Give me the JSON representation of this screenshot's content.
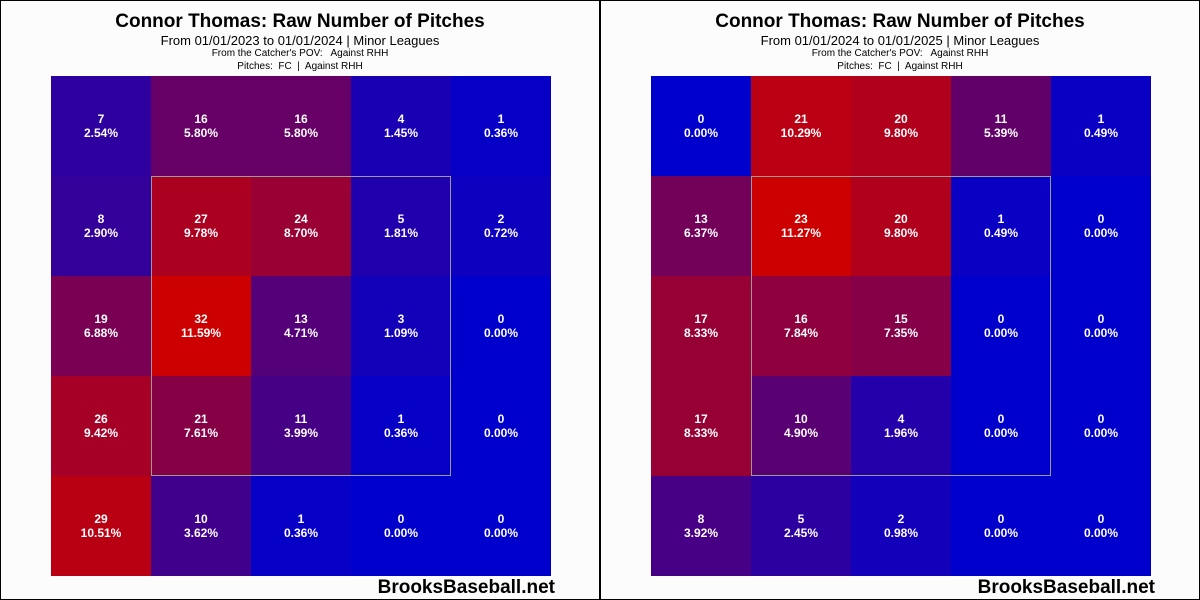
{
  "chart_data": [
    {
      "type": "heatmap",
      "title": "Connor Thomas: Raw Number of Pitches",
      "subtitle": "From 01/01/2023 to 01/01/2024 | Minor Leagues",
      "line3": "From the Catcher's POV:   Against RHH",
      "line4": "Pitches:  FC  |  Against RHH",
      "watermark": "BrooksBaseball.net",
      "grid": [
        [
          {
            "count": "7",
            "pct": "2.54%"
          },
          {
            "count": "16",
            "pct": "5.80%"
          },
          {
            "count": "16",
            "pct": "5.80%"
          },
          {
            "count": "4",
            "pct": "1.45%"
          },
          {
            "count": "1",
            "pct": "0.36%"
          }
        ],
        [
          {
            "count": "8",
            "pct": "2.90%"
          },
          {
            "count": "27",
            "pct": "9.78%"
          },
          {
            "count": "24",
            "pct": "8.70%"
          },
          {
            "count": "5",
            "pct": "1.81%"
          },
          {
            "count": "2",
            "pct": "0.72%"
          }
        ],
        [
          {
            "count": "19",
            "pct": "6.88%"
          },
          {
            "count": "32",
            "pct": "11.59%"
          },
          {
            "count": "13",
            "pct": "4.71%"
          },
          {
            "count": "3",
            "pct": "1.09%"
          },
          {
            "count": "0",
            "pct": "0.00%"
          }
        ],
        [
          {
            "count": "26",
            "pct": "9.42%"
          },
          {
            "count": "21",
            "pct": "7.61%"
          },
          {
            "count": "11",
            "pct": "3.99%"
          },
          {
            "count": "1",
            "pct": "0.36%"
          },
          {
            "count": "0",
            "pct": "0.00%"
          }
        ],
        [
          {
            "count": "29",
            "pct": "10.51%"
          },
          {
            "count": "10",
            "pct": "3.62%"
          },
          {
            "count": "1",
            "pct": "0.36%"
          },
          {
            "count": "0",
            "pct": "0.00%"
          },
          {
            "count": "0",
            "pct": "0.00%"
          }
        ]
      ]
    },
    {
      "type": "heatmap",
      "title": "Connor Thomas: Raw Number of Pitches",
      "subtitle": "From 01/01/2024 to 01/01/2025 | Minor Leagues",
      "line3": "From the Catcher's POV:   Against RHH",
      "line4": "Pitches:  FC  |  Against RHH",
      "watermark": "BrooksBaseball.net",
      "grid": [
        [
          {
            "count": "0",
            "pct": "0.00%"
          },
          {
            "count": "21",
            "pct": "10.29%"
          },
          {
            "count": "20",
            "pct": "9.80%"
          },
          {
            "count": "11",
            "pct": "5.39%"
          },
          {
            "count": "1",
            "pct": "0.49%"
          }
        ],
        [
          {
            "count": "13",
            "pct": "6.37%"
          },
          {
            "count": "23",
            "pct": "11.27%"
          },
          {
            "count": "20",
            "pct": "9.80%"
          },
          {
            "count": "1",
            "pct": "0.49%"
          },
          {
            "count": "0",
            "pct": "0.00%"
          }
        ],
        [
          {
            "count": "17",
            "pct": "8.33%"
          },
          {
            "count": "16",
            "pct": "7.84%"
          },
          {
            "count": "15",
            "pct": "7.35%"
          },
          {
            "count": "0",
            "pct": "0.00%"
          },
          {
            "count": "0",
            "pct": "0.00%"
          }
        ],
        [
          {
            "count": "17",
            "pct": "8.33%"
          },
          {
            "count": "10",
            "pct": "4.90%"
          },
          {
            "count": "4",
            "pct": "1.96%"
          },
          {
            "count": "0",
            "pct": "0.00%"
          },
          {
            "count": "0",
            "pct": "0.00%"
          }
        ],
        [
          {
            "count": "8",
            "pct": "3.92%"
          },
          {
            "count": "5",
            "pct": "2.45%"
          },
          {
            "count": "2",
            "pct": "0.98%"
          },
          {
            "count": "0",
            "pct": "0.00%"
          },
          {
            "count": "0",
            "pct": "0.00%"
          }
        ]
      ]
    }
  ],
  "colors": {
    "low": "#0000cc",
    "high": "#cc0000"
  }
}
